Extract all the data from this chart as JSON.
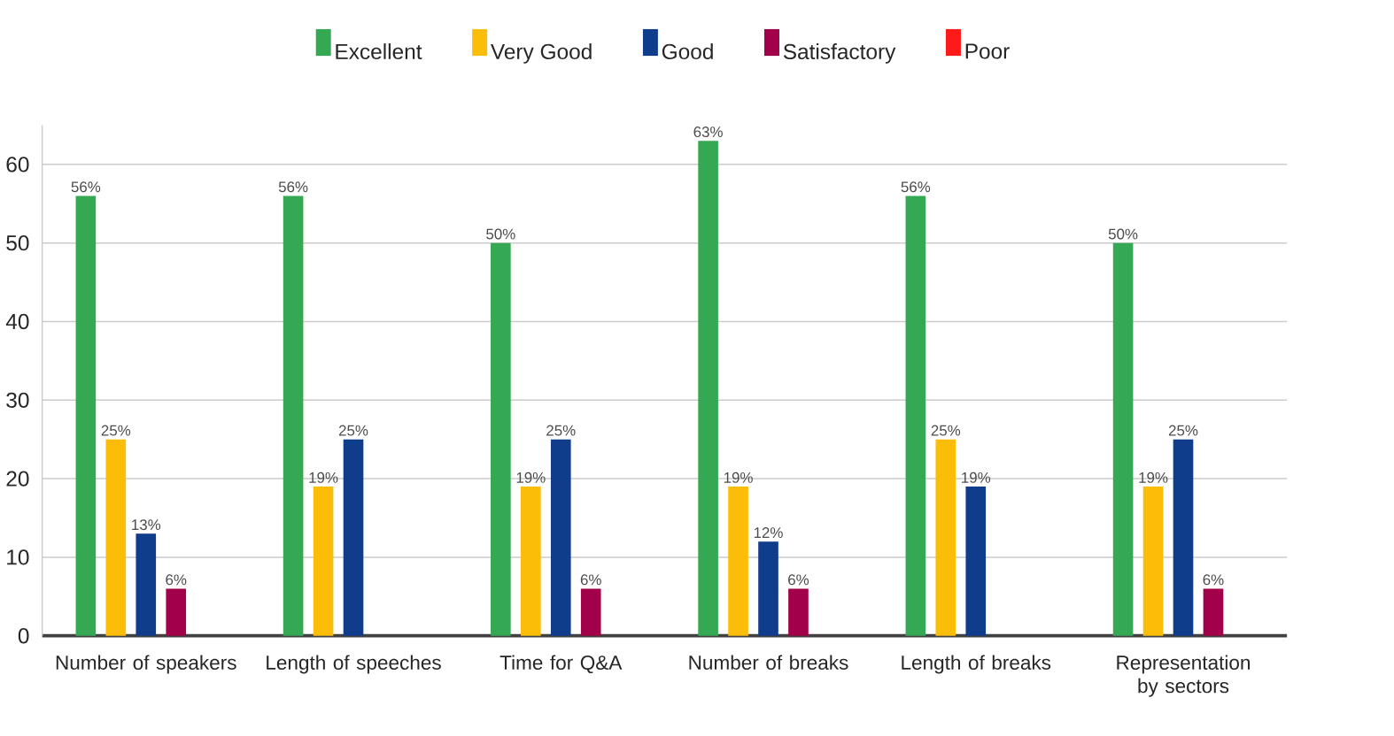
{
  "chart_data": {
    "type": "bar",
    "categories": [
      "Number of speakers",
      "Length of speeches",
      "Time for Q&A",
      "Number of breaks",
      "Length of breaks",
      "Representation by sectors"
    ],
    "series": [
      {
        "name": "Excellent",
        "color": "#35a853",
        "values": [
          56,
          56,
          50,
          63,
          56,
          50
        ],
        "value_labels": [
          "56%",
          "56%",
          "50%",
          "63%",
          "56%",
          "50%"
        ]
      },
      {
        "name": "Very Good",
        "color": "#fbbd08",
        "values": [
          25,
          19,
          19,
          19,
          25,
          19
        ],
        "value_labels": [
          "25%",
          "19%",
          "19%",
          "19%",
          "25%",
          "19%"
        ]
      },
      {
        "name": "Good",
        "color": "#0f3d8c",
        "values": [
          13,
          25,
          25,
          12,
          19,
          25
        ],
        "value_labels": [
          "13%",
          "25%",
          "25%",
          "12%",
          "19%",
          "25%"
        ]
      },
      {
        "name": "Satisfactory",
        "color": "#a3004b",
        "values": [
          6,
          null,
          6,
          6,
          null,
          6
        ],
        "value_labels": [
          "6%",
          null,
          "6%",
          "6%",
          null,
          "6%"
        ]
      },
      {
        "name": "Poor",
        "color": "#ff1a1a",
        "values": [
          null,
          null,
          null,
          null,
          null,
          null
        ],
        "value_labels": [
          null,
          null,
          null,
          null,
          null,
          null
        ]
      }
    ],
    "ylim": [
      0,
      65
    ],
    "yticks": [
      0,
      10,
      20,
      30,
      40,
      50,
      60
    ],
    "grid": "y",
    "legend": "top"
  }
}
